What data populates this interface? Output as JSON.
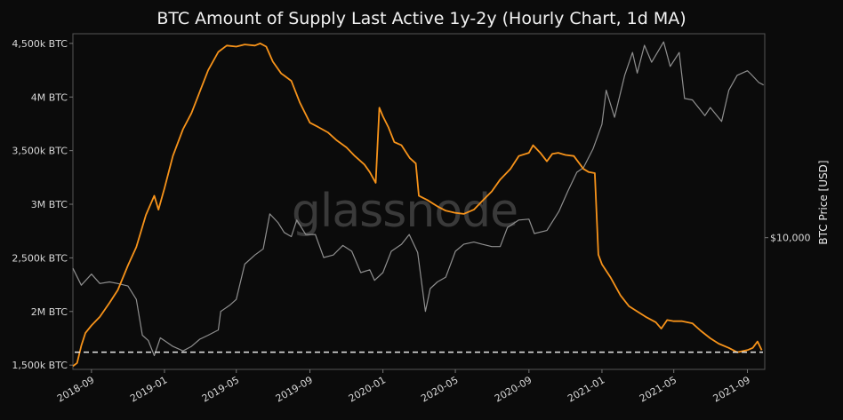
{
  "chart_data": {
    "type": "line",
    "title": "BTC Amount of Supply Last Active 1y-2y (Hourly Chart, 1d MA)",
    "watermark": "glassnode",
    "xlabel": "",
    "ylabel_left": "",
    "ylabel_right": "BTC Price [USD]",
    "x_range": [
      "2018-08-01",
      "2021-09-30"
    ],
    "ylim_left": [
      1460000,
      4590000
    ],
    "y_ticks_left": [
      {
        "value": 1500000,
        "label": "1,500k BTC"
      },
      {
        "value": 2000000,
        "label": "2M BTC"
      },
      {
        "value": 2500000,
        "label": "2,500k BTC"
      },
      {
        "value": 3000000,
        "label": "3M BTC"
      },
      {
        "value": 3500000,
        "label": "3,500k BTC"
      },
      {
        "value": 4000000,
        "label": "4M BTC"
      },
      {
        "value": 4500000,
        "label": "4,500k BTC"
      }
    ],
    "right_scale": "log",
    "ylim_right": [
      2900,
      68000
    ],
    "y_ticks_right": [
      {
        "value": 10000,
        "label": "$10,000"
      }
    ],
    "x_ticks": [
      {
        "date": "2018-09-01",
        "label": "2018-09"
      },
      {
        "date": "2019-01-01",
        "label": "2019-01"
      },
      {
        "date": "2019-05-01",
        "label": "2019-05"
      },
      {
        "date": "2019-09-01",
        "label": "2019-09"
      },
      {
        "date": "2020-01-01",
        "label": "2020-01"
      },
      {
        "date": "2020-05-01",
        "label": "2020-05"
      },
      {
        "date": "2020-09-01",
        "label": "2020-09"
      },
      {
        "date": "2021-01-01",
        "label": "2021-01"
      },
      {
        "date": "2021-05-01",
        "label": "2021-05"
      },
      {
        "date": "2021-09-01",
        "label": "2021-09"
      }
    ],
    "reference_line": {
      "value": 1620000,
      "style": "dashed",
      "color": "#e8e8e8"
    },
    "grid": false,
    "series": [
      {
        "name": "",
        "axis": "left",
        "color": "#f7931a",
        "points": [
          [
            "2018-08-01",
            1490000
          ],
          [
            "2018-08-08",
            1520000
          ],
          [
            "2018-08-15",
            1680000
          ],
          [
            "2018-08-22",
            1800000
          ],
          [
            "2018-09-01",
            1870000
          ],
          [
            "2018-09-15",
            1950000
          ],
          [
            "2018-10-01",
            2080000
          ],
          [
            "2018-10-15",
            2200000
          ],
          [
            "2018-11-01",
            2430000
          ],
          [
            "2018-11-15",
            2600000
          ],
          [
            "2018-12-01",
            2900000
          ],
          [
            "2018-12-15",
            3080000
          ],
          [
            "2018-12-22",
            2950000
          ],
          [
            "2019-01-01",
            3150000
          ],
          [
            "2019-01-15",
            3450000
          ],
          [
            "2019-02-01",
            3700000
          ],
          [
            "2019-02-15",
            3850000
          ],
          [
            "2019-03-01",
            4050000
          ],
          [
            "2019-03-15",
            4250000
          ],
          [
            "2019-04-01",
            4420000
          ],
          [
            "2019-04-15",
            4480000
          ],
          [
            "2019-05-01",
            4470000
          ],
          [
            "2019-05-15",
            4490000
          ],
          [
            "2019-06-01",
            4480000
          ],
          [
            "2019-06-10",
            4500000
          ],
          [
            "2019-06-20",
            4470000
          ],
          [
            "2019-07-01",
            4330000
          ],
          [
            "2019-07-15",
            4220000
          ],
          [
            "2019-07-20",
            4200000
          ],
          [
            "2019-08-01",
            4150000
          ],
          [
            "2019-08-15",
            3950000
          ],
          [
            "2019-09-01",
            3760000
          ],
          [
            "2019-09-15",
            3720000
          ],
          [
            "2019-10-01",
            3670000
          ],
          [
            "2019-10-15",
            3600000
          ],
          [
            "2019-11-01",
            3530000
          ],
          [
            "2019-11-15",
            3450000
          ],
          [
            "2019-12-01",
            3370000
          ],
          [
            "2019-12-10",
            3300000
          ],
          [
            "2019-12-20",
            3200000
          ],
          [
            "2019-12-26",
            3900000
          ],
          [
            "2020-01-01",
            3820000
          ],
          [
            "2020-01-10",
            3720000
          ],
          [
            "2020-01-20",
            3580000
          ],
          [
            "2020-02-01",
            3550000
          ],
          [
            "2020-02-15",
            3430000
          ],
          [
            "2020-02-25",
            3380000
          ],
          [
            "2020-03-01",
            3080000
          ],
          [
            "2020-03-15",
            3040000
          ],
          [
            "2020-04-01",
            2980000
          ],
          [
            "2020-04-15",
            2940000
          ],
          [
            "2020-05-01",
            2920000
          ],
          [
            "2020-05-15",
            2910000
          ],
          [
            "2020-06-01",
            2950000
          ],
          [
            "2020-06-15",
            3030000
          ],
          [
            "2020-07-01",
            3120000
          ],
          [
            "2020-07-15",
            3230000
          ],
          [
            "2020-08-01",
            3330000
          ],
          [
            "2020-08-15",
            3450000
          ],
          [
            "2020-09-01",
            3480000
          ],
          [
            "2020-09-08",
            3550000
          ],
          [
            "2020-09-20",
            3480000
          ],
          [
            "2020-10-01",
            3400000
          ],
          [
            "2020-10-10",
            3470000
          ],
          [
            "2020-10-20",
            3480000
          ],
          [
            "2020-11-01",
            3460000
          ],
          [
            "2020-11-15",
            3450000
          ],
          [
            "2020-12-01",
            3330000
          ],
          [
            "2020-12-10",
            3300000
          ],
          [
            "2020-12-20",
            3290000
          ],
          [
            "2020-12-26",
            2530000
          ],
          [
            "2021-01-01",
            2440000
          ],
          [
            "2021-01-15",
            2320000
          ],
          [
            "2021-02-01",
            2150000
          ],
          [
            "2021-02-15",
            2050000
          ],
          [
            "2021-03-01",
            2000000
          ],
          [
            "2021-03-15",
            1950000
          ],
          [
            "2021-04-01",
            1900000
          ],
          [
            "2021-04-10",
            1840000
          ],
          [
            "2021-04-20",
            1920000
          ],
          [
            "2021-05-01",
            1910000
          ],
          [
            "2021-05-15",
            1910000
          ],
          [
            "2021-06-01",
            1890000
          ],
          [
            "2021-06-15",
            1820000
          ],
          [
            "2021-07-01",
            1750000
          ],
          [
            "2021-07-15",
            1700000
          ],
          [
            "2021-08-01",
            1660000
          ],
          [
            "2021-08-15",
            1620000
          ],
          [
            "2021-09-01",
            1640000
          ],
          [
            "2021-09-10",
            1660000
          ],
          [
            "2021-09-18",
            1720000
          ],
          [
            "2021-09-25",
            1640000
          ]
        ]
      },
      {
        "name": "",
        "axis": "right",
        "color": "#8f8f8f",
        "points": [
          [
            "2018-08-01",
            7500
          ],
          [
            "2018-08-15",
            6400
          ],
          [
            "2018-09-01",
            7100
          ],
          [
            "2018-09-15",
            6500
          ],
          [
            "2018-10-01",
            6600
          ],
          [
            "2018-10-15",
            6500
          ],
          [
            "2018-11-01",
            6350
          ],
          [
            "2018-11-15",
            5600
          ],
          [
            "2018-11-25",
            4000
          ],
          [
            "2018-12-05",
            3800
          ],
          [
            "2018-12-15",
            3300
          ],
          [
            "2018-12-25",
            3900
          ],
          [
            "2019-01-01",
            3800
          ],
          [
            "2019-01-15",
            3600
          ],
          [
            "2019-02-01",
            3450
          ],
          [
            "2019-02-15",
            3600
          ],
          [
            "2019-03-01",
            3850
          ],
          [
            "2019-03-15",
            4000
          ],
          [
            "2019-04-01",
            4200
          ],
          [
            "2019-04-05",
            5000
          ],
          [
            "2019-04-20",
            5300
          ],
          [
            "2019-05-01",
            5600
          ],
          [
            "2019-05-15",
            7800
          ],
          [
            "2019-06-01",
            8500
          ],
          [
            "2019-06-15",
            9000
          ],
          [
            "2019-06-26",
            12500
          ],
          [
            "2019-07-10",
            11500
          ],
          [
            "2019-07-20",
            10500
          ],
          [
            "2019-08-01",
            10100
          ],
          [
            "2019-08-10",
            11800
          ],
          [
            "2019-08-25",
            10300
          ],
          [
            "2019-09-10",
            10300
          ],
          [
            "2019-09-24",
            8300
          ],
          [
            "2019-10-10",
            8500
          ],
          [
            "2019-10-26",
            9300
          ],
          [
            "2019-11-10",
            8800
          ],
          [
            "2019-11-25",
            7200
          ],
          [
            "2019-12-10",
            7400
          ],
          [
            "2019-12-18",
            6700
          ],
          [
            "2020-01-01",
            7200
          ],
          [
            "2020-01-15",
            8800
          ],
          [
            "2020-02-01",
            9400
          ],
          [
            "2020-02-14",
            10300
          ],
          [
            "2020-02-28",
            8700
          ],
          [
            "2020-03-12",
            5000
          ],
          [
            "2020-03-20",
            6200
          ],
          [
            "2020-04-01",
            6600
          ],
          [
            "2020-04-15",
            6900
          ],
          [
            "2020-05-01",
            8800
          ],
          [
            "2020-05-15",
            9400
          ],
          [
            "2020-06-01",
            9600
          ],
          [
            "2020-06-15",
            9400
          ],
          [
            "2020-07-01",
            9200
          ],
          [
            "2020-07-15",
            9200
          ],
          [
            "2020-07-27",
            11000
          ],
          [
            "2020-08-15",
            11800
          ],
          [
            "2020-09-01",
            11900
          ],
          [
            "2020-09-10",
            10400
          ],
          [
            "2020-10-01",
            10700
          ],
          [
            "2020-10-21",
            12800
          ],
          [
            "2020-11-05",
            15500
          ],
          [
            "2020-11-20",
            18500
          ],
          [
            "2020-12-01",
            19300
          ],
          [
            "2020-12-17",
            23000
          ],
          [
            "2021-01-01",
            29000
          ],
          [
            "2021-01-08",
            40000
          ],
          [
            "2021-01-22",
            31000
          ],
          [
            "2021-02-08",
            46000
          ],
          [
            "2021-02-21",
            57000
          ],
          [
            "2021-03-01",
            47000
          ],
          [
            "2021-03-13",
            61000
          ],
          [
            "2021-03-25",
            52000
          ],
          [
            "2021-04-14",
            63000
          ],
          [
            "2021-04-25",
            50000
          ],
          [
            "2021-05-10",
            57000
          ],
          [
            "2021-05-19",
            37000
          ],
          [
            "2021-06-01",
            36500
          ],
          [
            "2021-06-22",
            31500
          ],
          [
            "2021-07-01",
            34000
          ],
          [
            "2021-07-20",
            29800
          ],
          [
            "2021-08-01",
            40000
          ],
          [
            "2021-08-15",
            46000
          ],
          [
            "2021-09-01",
            48000
          ],
          [
            "2021-09-07",
            46500
          ],
          [
            "2021-09-20",
            43000
          ],
          [
            "2021-09-28",
            42000
          ]
        ]
      }
    ]
  }
}
